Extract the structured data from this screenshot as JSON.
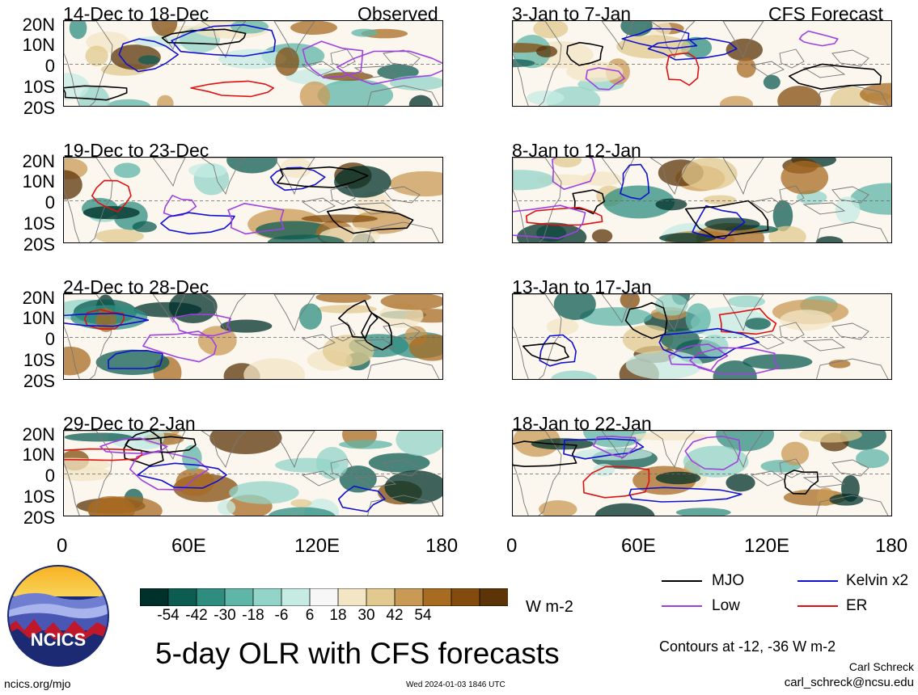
{
  "observed_label": "Observed",
  "forecast_label": "CFS Forecast",
  "panels_left": [
    {
      "title": "14-Dec to 18-Dec"
    },
    {
      "title": "19-Dec to 23-Dec"
    },
    {
      "title": "24-Dec to 28-Dec"
    },
    {
      "title": "29-Dec to 2-Jan"
    }
  ],
  "panels_right": [
    {
      "title": "3-Jan to 7-Jan"
    },
    {
      "title": "8-Jan to 12-Jan"
    },
    {
      "title": "13-Jan to 17-Jan"
    },
    {
      "title": "18-Jan to 22-Jan"
    }
  ],
  "lat_labels": [
    "20N",
    "10N",
    "0",
    "10S",
    "20S"
  ],
  "lon_labels": [
    "0",
    "60E",
    "120E",
    "180"
  ],
  "colorbar": {
    "ticks": [
      "-54",
      "-42",
      "-30",
      "-18",
      "-6",
      "6",
      "18",
      "30",
      "42",
      "54"
    ],
    "colors": [
      "#00302a",
      "#0d5c52",
      "#2f8d80",
      "#5fb6a8",
      "#93d4c8",
      "#c6ebe3",
      "#f7f7f7",
      "#f3e6c4",
      "#e1c98f",
      "#c99a55",
      "#a86b22",
      "#834c0e",
      "#5c3408"
    ],
    "units": "W m-2"
  },
  "legend": [
    {
      "label": "MJO",
      "color": "#000000"
    },
    {
      "label": "Kelvin x2",
      "color": "#1010d0"
    },
    {
      "label": "Low",
      "color": "#a040e0"
    },
    {
      "label": "ER",
      "color": "#e01010"
    }
  ],
  "main_title": "5-day OLR with CFS forecasts",
  "contour_note": "Contours at -12, -36 W m-2",
  "author": "Carl Schreck",
  "email": "carl_schreck@ncsu.edu",
  "site": "ncics.org/mjo",
  "timestamp": "Wed 2024-01-03 1846 UTC",
  "logo_text": "NCICS"
}
